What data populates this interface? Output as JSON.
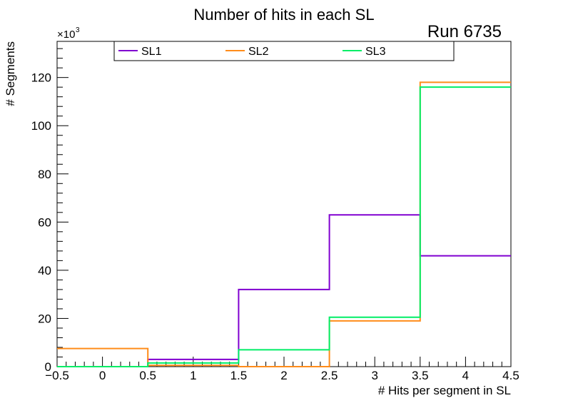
{
  "chart_data": {
    "type": "step-histogram",
    "title": "Number of hits in each SL",
    "annotation": "Run 6735",
    "xlabel": "# Hits per segment in SL",
    "ylabel": "# Segments",
    "y_multiplier": "×10",
    "y_multiplier_exp": "3",
    "xlim": [
      -0.5,
      4.5
    ],
    "ylim": [
      0,
      135
    ],
    "x_ticks": [
      -0.5,
      0,
      0.5,
      1,
      1.5,
      2,
      2.5,
      3,
      3.5,
      4,
      4.5
    ],
    "x_tick_labels": [
      "−0.5",
      "0",
      "0.5",
      "1",
      "1.5",
      "2",
      "2.5",
      "3",
      "3.5",
      "4",
      "4.5"
    ],
    "y_ticks": [
      0,
      20,
      40,
      60,
      80,
      100,
      120
    ],
    "y_tick_labels": [
      "0",
      "20",
      "40",
      "60",
      "80",
      "100",
      "120"
    ],
    "bin_edges": [
      -0.5,
      0.5,
      1.5,
      2.5,
      3.5,
      4.5
    ],
    "series": [
      {
        "name": "SL1",
        "color": "#8000d0",
        "values": [
          0,
          3,
          32,
          63,
          46
        ]
      },
      {
        "name": "SL2",
        "color": "#ff8c1a",
        "values": [
          7.5,
          0.5,
          0,
          19,
          118
        ]
      },
      {
        "name": "SL3",
        "color": "#00ee66",
        "values": [
          0,
          1.5,
          7,
          20.5,
          116
        ]
      }
    ]
  }
}
